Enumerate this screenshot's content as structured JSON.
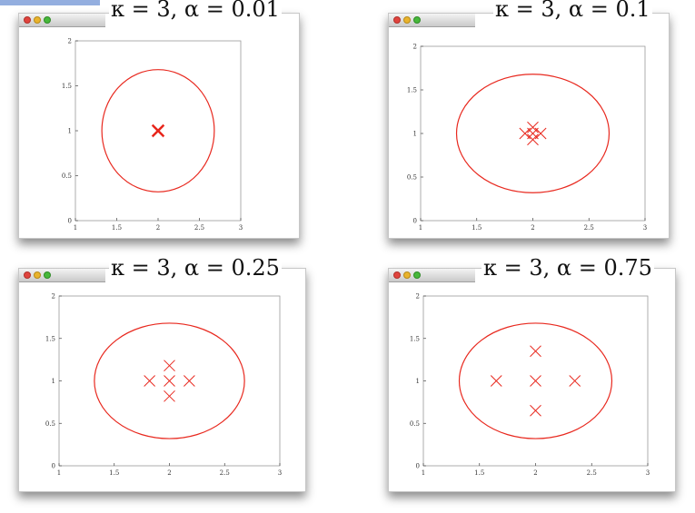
{
  "colors": {
    "marker": "#e8281e",
    "ellipse": "#e8281e",
    "axis": "#444444",
    "window_bg": "#ffffff"
  },
  "icons": [
    "close-dot",
    "minimize-dot",
    "zoom-dot"
  ],
  "chart_data": [
    {
      "type": "scatter",
      "title": "κ = 3, α = 0.01",
      "xlim": [
        1,
        3
      ],
      "ylim": [
        0,
        2
      ],
      "xticks": [
        "1",
        "1.5",
        "2",
        "2.5",
        "3"
      ],
      "yticks": [
        "0",
        "0.5",
        "1",
        "1.5",
        "2"
      ],
      "ellipse": {
        "center": [
          2,
          1
        ],
        "rx": 0.68,
        "ry": 0.68
      },
      "series": [
        {
          "marker": "x",
          "x": [
            2,
            1.99,
            2.01,
            2,
            2
          ],
          "y": [
            1,
            1,
            1,
            1.01,
            0.99
          ]
        }
      ]
    },
    {
      "type": "scatter",
      "title": "κ = 3, α = 0.1",
      "xlim": [
        1,
        3
      ],
      "ylim": [
        0,
        2
      ],
      "xticks": [
        "1",
        "1.5",
        "2",
        "2.5",
        "3"
      ],
      "yticks": [
        "0",
        "0.5",
        "1",
        "1.5",
        "2"
      ],
      "ellipse": {
        "center": [
          2,
          1
        ],
        "rx": 0.68,
        "ry": 0.68
      },
      "series": [
        {
          "marker": "x",
          "x": [
            2,
            1.93,
            2.07,
            2,
            2
          ],
          "y": [
            1,
            1,
            1,
            1.07,
            0.93
          ]
        }
      ]
    },
    {
      "type": "scatter",
      "title": "κ = 3, α = 0.25",
      "xlim": [
        1,
        3
      ],
      "ylim": [
        0,
        2
      ],
      "xticks": [
        "1",
        "1.5",
        "2",
        "2.5",
        "3"
      ],
      "yticks": [
        "0",
        "0.5",
        "1",
        "1.5",
        "2"
      ],
      "ellipse": {
        "center": [
          2,
          1
        ],
        "rx": 0.68,
        "ry": 0.68
      },
      "series": [
        {
          "marker": "x",
          "x": [
            2,
            1.82,
            2.18,
            2,
            2
          ],
          "y": [
            1,
            1,
            1,
            1.18,
            0.82
          ]
        }
      ]
    },
    {
      "type": "scatter",
      "title": "κ = 3, α = 0.75",
      "xlim": [
        1,
        3
      ],
      "ylim": [
        0,
        2
      ],
      "xticks": [
        "1",
        "1.5",
        "2",
        "2.5",
        "3"
      ],
      "yticks": [
        "0",
        "0.5",
        "1",
        "1.5",
        "2"
      ],
      "ellipse": {
        "center": [
          2,
          1
        ],
        "rx": 0.68,
        "ry": 0.68
      },
      "series": [
        {
          "marker": "x",
          "x": [
            2,
            1.65,
            2.35,
            2,
            2
          ],
          "y": [
            1,
            1,
            1,
            1.35,
            0.65
          ]
        }
      ]
    }
  ]
}
